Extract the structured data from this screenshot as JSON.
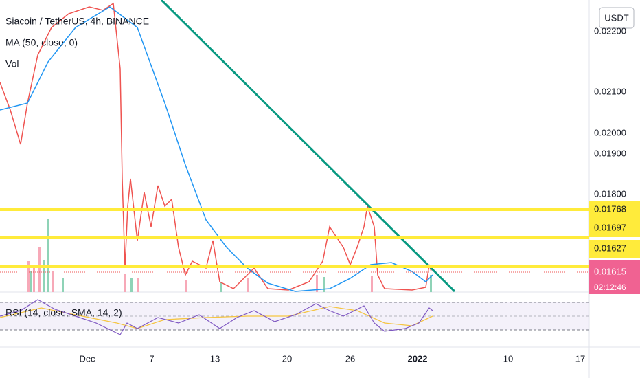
{
  "legend": {
    "symbol": "Siacoin / TetherUS, 4h, BINANCE",
    "ma": "MA (50, close, 0)",
    "volume": "Vol",
    "rsi": "RSI (14, close, SMA, 14, 2)"
  },
  "price_axis": {
    "currency": "USDT",
    "ticks": [
      "0.02200",
      "0.02100",
      "0.02000",
      "0.01900",
      "0.01800"
    ],
    "levels": [
      "0.01768",
      "0.01697",
      "0.01627"
    ],
    "last_price": "0.01615",
    "countdown": "02:12:46"
  },
  "time_axis": [
    "Dec",
    "7",
    "13",
    "20",
    "26",
    "2022",
    "10",
    "17"
  ]
}
